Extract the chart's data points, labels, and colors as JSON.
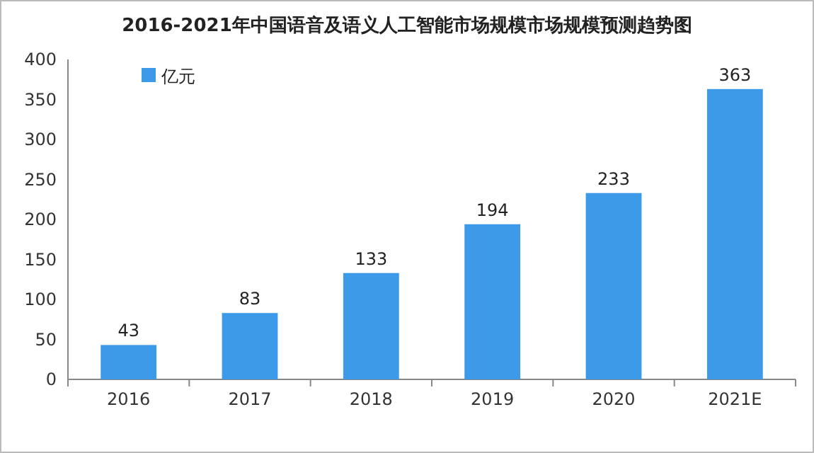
{
  "chart_data": {
    "type": "bar",
    "title": "2016-2021年中国语音及语义人工智能市场规模市场规模预测趋势图",
    "categories": [
      "2016",
      "2017",
      "2018",
      "2019",
      "2020",
      "2021E"
    ],
    "series": [
      {
        "name": "亿元",
        "color": "#3d9ae8",
        "values": [
          43,
          83,
          133,
          194,
          233,
          363
        ]
      }
    ],
    "ylim": [
      0,
      400
    ],
    "yticks": [
      0,
      50,
      100,
      150,
      200,
      250,
      300,
      350,
      400
    ],
    "data_labels": true,
    "legend": "top left"
  }
}
